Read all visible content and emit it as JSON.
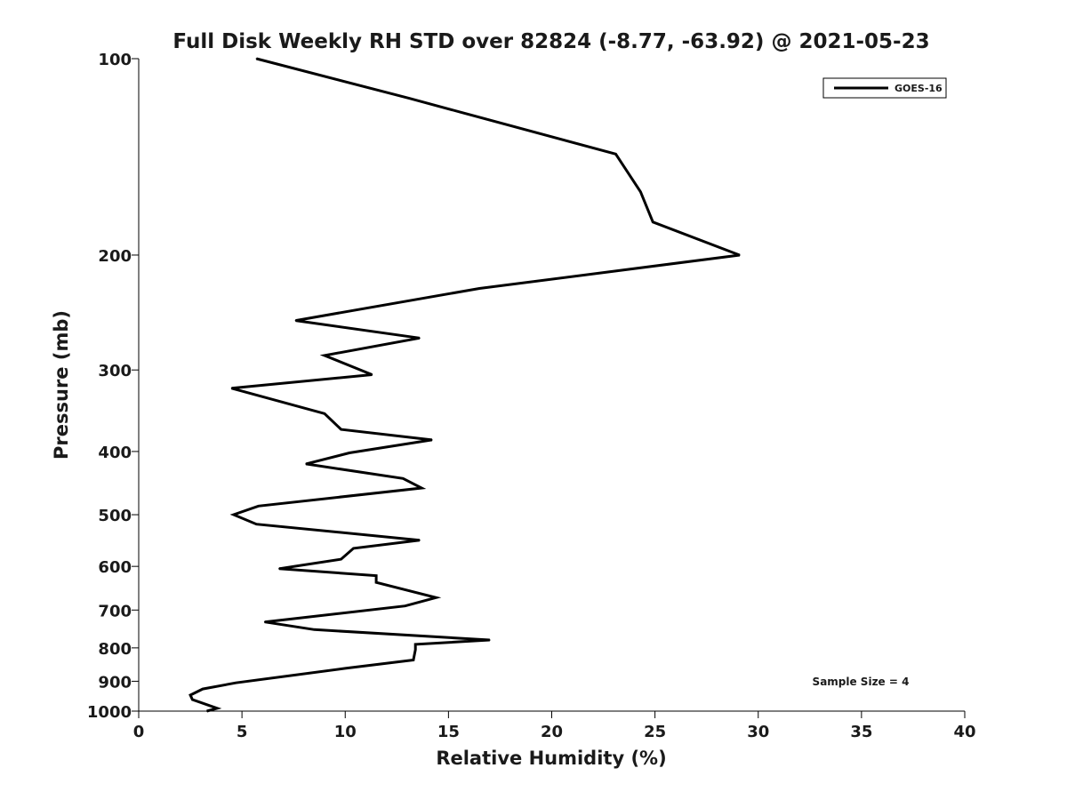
{
  "chart_data": {
    "type": "line",
    "title": "Full Disk Weekly RH STD over 82824 (-8.77, -63.92) @ 2021-05-23",
    "xlabel": "Relative Humidity (%)",
    "ylabel": "Pressure (mb)",
    "xlim": [
      0,
      40
    ],
    "ylim": [
      100,
      1000
    ],
    "y_scale": "log",
    "y_reversed": true,
    "x_ticks": [
      0,
      5,
      10,
      15,
      20,
      25,
      30,
      35,
      40
    ],
    "x_tick_labels": [
      "0",
      "5",
      "10",
      "15",
      "20",
      "25",
      "30",
      "35",
      "40"
    ],
    "y_ticks": [
      100,
      200,
      300,
      400,
      500,
      600,
      700,
      800,
      900,
      1000
    ],
    "y_tick_labels": [
      "100",
      "200",
      "300",
      "400",
      "500",
      "600",
      "700",
      "800",
      "900",
      "1000"
    ],
    "grid": false,
    "legend_position": "top-right",
    "annotation": "Sample Size = 4",
    "series": [
      {
        "name": "GOES-16",
        "color": "#000000",
        "x": [
          5.7,
          13.1,
          23.1,
          24.3,
          24.9,
          29.1,
          16.5,
          7.6,
          13.6,
          9.0,
          11.3,
          4.5,
          9.0,
          9.8,
          14.2,
          10.2,
          8.1,
          12.8,
          13.7,
          5.8,
          4.6,
          5.7,
          13.6,
          10.4,
          9.8,
          6.8,
          11.5,
          11.5,
          14.4,
          12.9,
          6.1,
          8.5,
          17.0,
          13.4,
          13.4,
          13.3,
          10.0,
          4.7,
          3.1,
          2.5,
          2.6,
          3.8,
          3.3
        ],
        "y": [
          100,
          115,
          140,
          160,
          178,
          200,
          225,
          252,
          268,
          285,
          305,
          320,
          350,
          370,
          384,
          402,
          418,
          440,
          455,
          485,
          500,
          517,
          547,
          563,
          585,
          605,
          620,
          635,
          670,
          690,
          730,
          750,
          778,
          790,
          805,
          835,
          860,
          905,
          925,
          945,
          960,
          990,
          1000
        ]
      }
    ]
  }
}
